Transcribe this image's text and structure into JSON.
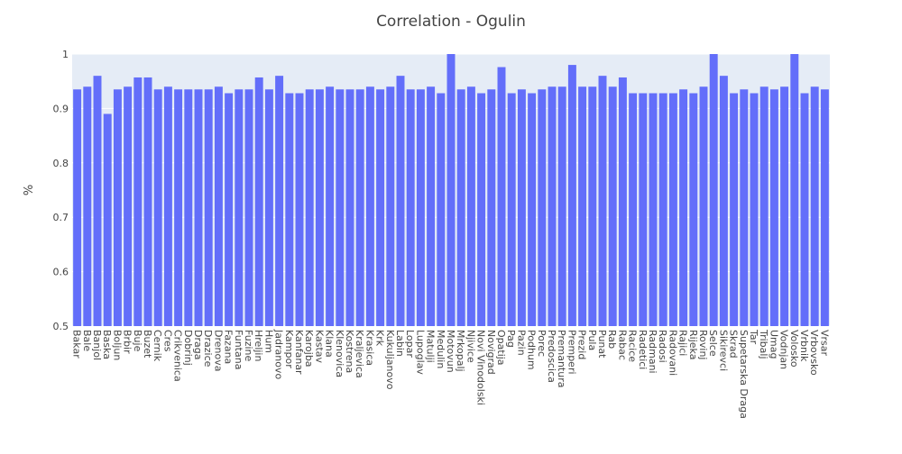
{
  "chart_data": {
    "type": "bar",
    "title": "Correlation - Ogulin",
    "xlabel": "",
    "ylabel": "%",
    "ylim": [
      0.5,
      1.0
    ],
    "yticks": [
      "0.5",
      "0.6",
      "0.7",
      "0.8",
      "0.9",
      "1"
    ],
    "grid": true,
    "colors": {
      "bar": "#636efa",
      "plot_bg": "#e5ecf6",
      "grid": "#ffffff",
      "text": "#444444"
    },
    "categories": [
      "Bakar",
      "Bale",
      "Banjol",
      "Baska",
      "Boljun",
      "Brbir",
      "Buje",
      "Buzet",
      "Cernik",
      "Cres",
      "Crikvenica",
      "Dobrinj",
      "Draga",
      "Drazice",
      "Drenova",
      "Fazana",
      "Funtana",
      "Fuzine",
      "Hreljin",
      "Hum",
      "Jadranovo",
      "Kampor",
      "Kanfanar",
      "Karojba",
      "Kastav",
      "Klana",
      "Klenovica",
      "Kostrena",
      "Kraljevica",
      "Krasica",
      "Krk",
      "Kukuljanovo",
      "Labin",
      "Lopar",
      "Lupoglav",
      "Matulji",
      "Medulin",
      "Motovun",
      "Mrkopalj",
      "Njivice",
      "Novi Vinodolski",
      "Novigrad",
      "Opatija",
      "Pag",
      "Pazin",
      "Podhum",
      "Porec",
      "Predoscica",
      "Premantura",
      "Premperi",
      "Prezid",
      "Pula",
      "Punat",
      "Rab",
      "Rabac",
      "Racice",
      "Radetici",
      "Radmani",
      "Radosi",
      "Radovani",
      "Rajici",
      "Rijeka",
      "Rovinj",
      "Selce",
      "Sikirevci",
      "Skrad",
      "Supetarska Draga",
      "Tar",
      "Tribalj",
      "Umag",
      "Vodnjan",
      "Volosko",
      "Vrbnik",
      "Vrbovsko",
      "Vrsar"
    ],
    "values": [
      0.935,
      0.94,
      0.96,
      0.89,
      0.935,
      0.94,
      0.957,
      0.957,
      0.935,
      0.94,
      0.935,
      0.935,
      0.935,
      0.935,
      0.94,
      0.928,
      0.935,
      0.935,
      0.957,
      0.935,
      0.96,
      0.928,
      0.928,
      0.935,
      0.935,
      0.94,
      0.935,
      0.935,
      0.935,
      0.94,
      0.935,
      0.94,
      0.96,
      0.935,
      0.935,
      0.94,
      0.928,
      1.0,
      0.935,
      0.94,
      0.928,
      0.935,
      0.976,
      0.928,
      0.935,
      0.928,
      0.935,
      0.94,
      0.94,
      0.98,
      0.94,
      0.94,
      0.96,
      0.94,
      0.957,
      0.928,
      0.928,
      0.928,
      0.928,
      0.928,
      0.935,
      0.928,
      0.94,
      1.0,
      0.96,
      0.928,
      0.935,
      0.928,
      0.94,
      0.935,
      0.94,
      1.0,
      0.928,
      0.94,
      0.935
    ]
  }
}
